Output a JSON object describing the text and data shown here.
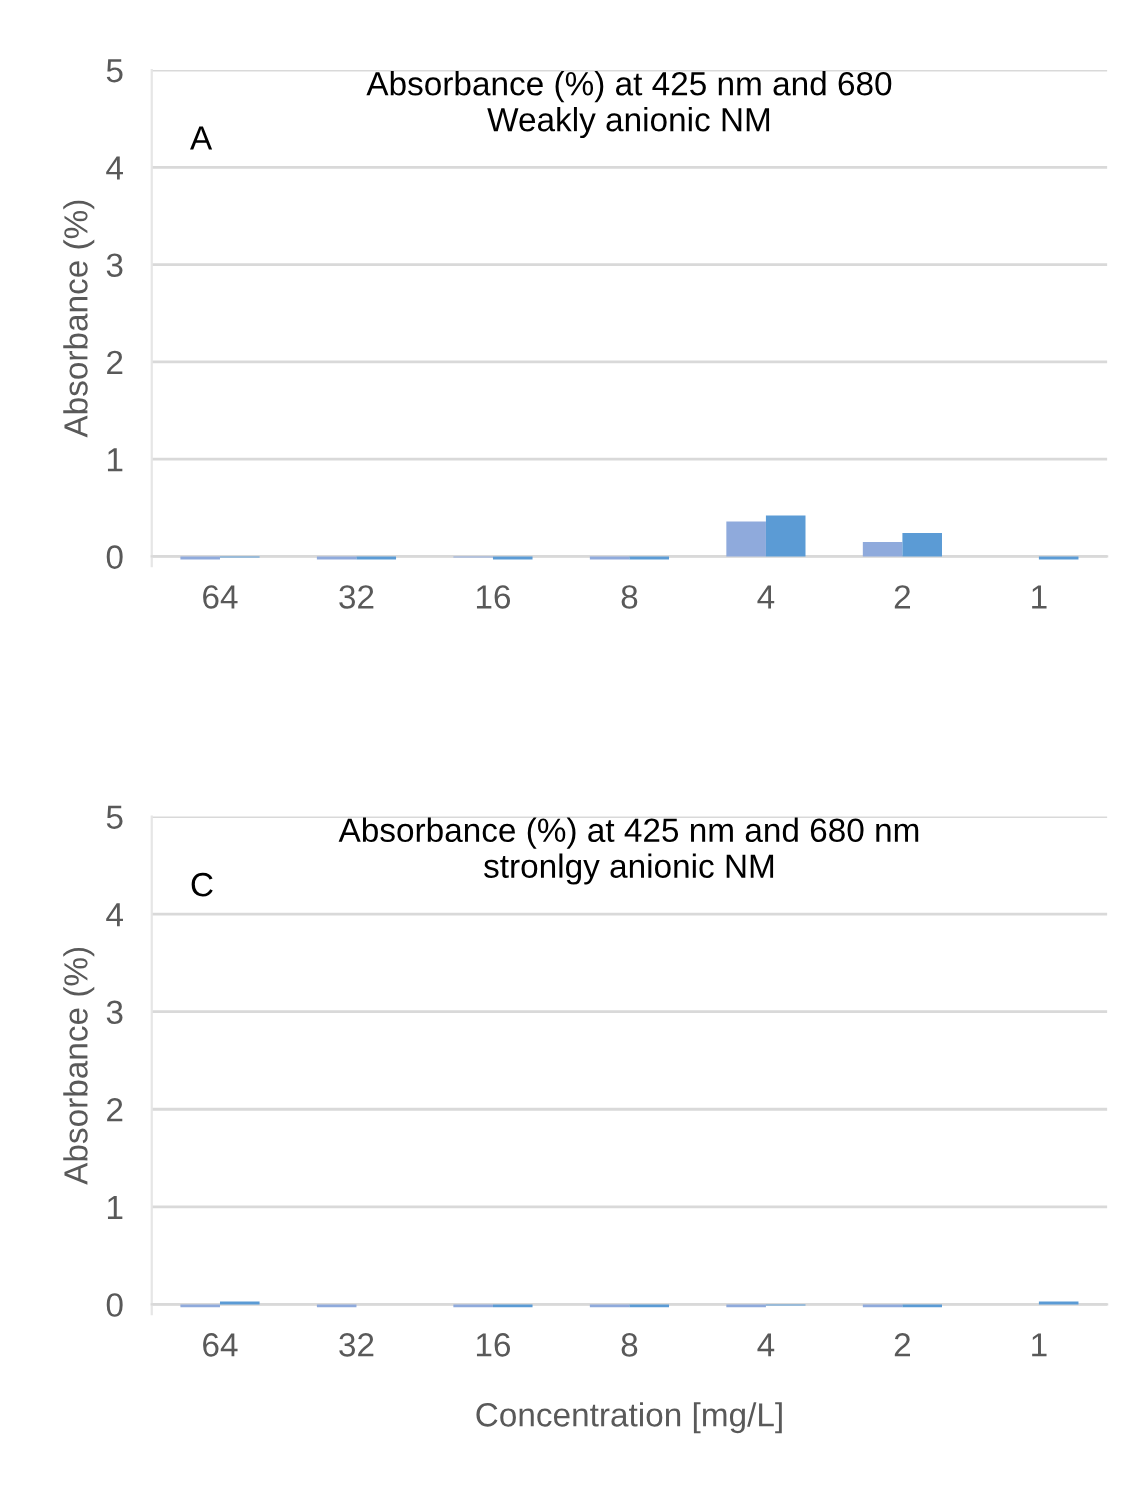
{
  "chart_data": [
    {
      "type": "bar",
      "title": "Absorbance (%) at 425 nm and 680\nWeakly anionic NM",
      "ylabel": "Absorbance (%)",
      "annotations": [
        "A"
      ],
      "categories": [
        "64",
        "32",
        "16",
        "8",
        "4",
        "2",
        "1"
      ],
      "series": [
        {
          "color": "#8faadc",
          "values": [
            -0.03,
            -0.03,
            -0.01,
            -0.03,
            0.36,
            0.15,
            0
          ]
        },
        {
          "color": "#5b9bd5",
          "values": [
            -0.01,
            -0.03,
            -0.03,
            -0.03,
            0.42,
            0.24,
            -0.03
          ]
        }
      ],
      "ylim": [
        -0.1,
        5
      ],
      "yticks": [
        0,
        1,
        2,
        3,
        4,
        5
      ],
      "grid": "y",
      "legend": false
    },
    {
      "type": "bar",
      "title": "Absorbance (%) at 425 nm and 680 nm\nstronlgy anionic NM",
      "ylabel": "Absorbance (%)",
      "xlabel": "Concentration [mg/L]",
      "annotations": [
        "C"
      ],
      "categories": [
        "64",
        "32",
        "16",
        "8",
        "4",
        "2",
        "1"
      ],
      "series": [
        {
          "color": "#8faadc",
          "values": [
            -0.03,
            -0.03,
            -0.03,
            -0.03,
            -0.03,
            -0.03,
            0
          ]
        },
        {
          "color": "#5b9bd5",
          "values": [
            0.03,
            0,
            -0.03,
            -0.03,
            -0.01,
            -0.03,
            0.03
          ]
        }
      ],
      "ylim": [
        -0.1,
        5
      ],
      "yticks": [
        0,
        1,
        2,
        3,
        4,
        5
      ],
      "grid": "y",
      "legend": false
    }
  ]
}
